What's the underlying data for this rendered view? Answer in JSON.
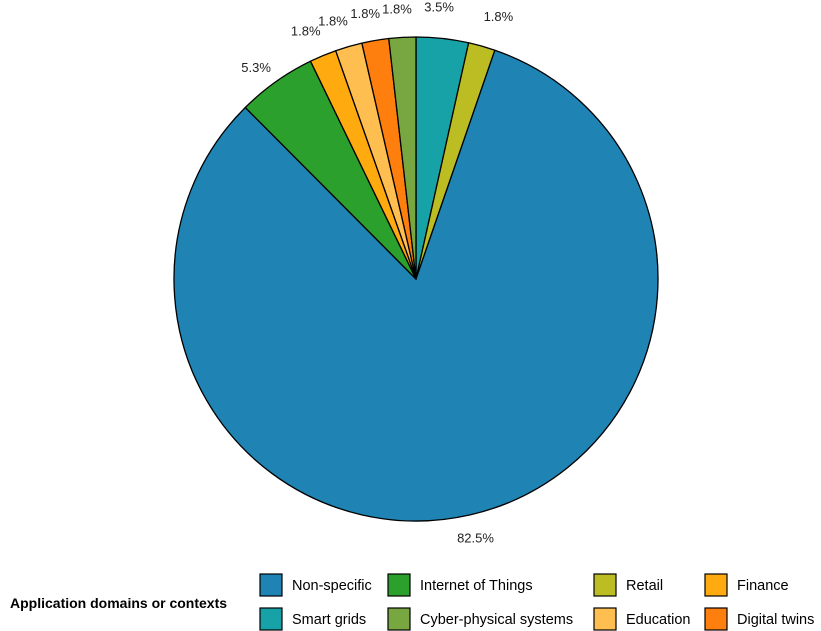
{
  "chart_data": {
    "type": "pie",
    "title": "",
    "legend_title": "Application domains or contexts",
    "legend_position": "bottom",
    "slices": [
      {
        "label": "Smart grids",
        "value": 3.5,
        "display": "3.5%",
        "color": "#17a2a8"
      },
      {
        "label": "Retail",
        "value": 1.8,
        "display": "1.8%",
        "color": "#bcbd22"
      },
      {
        "label": "Non-specific",
        "value": 82.5,
        "display": "82.5%",
        "color": "#1f83b4"
      },
      {
        "label": "Internet of Things",
        "value": 5.3,
        "display": "5.3%",
        "color": "#2ca02c"
      },
      {
        "label": "Finance",
        "value": 1.8,
        "display": "1.8%",
        "color": "#ffaa0e"
      },
      {
        "label": "Education",
        "value": 1.8,
        "display": "1.8%",
        "color": "#ffbf50"
      },
      {
        "label": "Digital twins",
        "value": 1.8,
        "display": "1.8%",
        "color": "#ff7f0e"
      },
      {
        "label": "Cyber-physical systems",
        "value": 1.8,
        "display": "1.8%",
        "color": "#78a641"
      }
    ],
    "legend_order": [
      "Non-specific",
      "Internet of Things",
      "Retail",
      "Finance",
      "Smart grids",
      "Cyber-physical systems",
      "Education",
      "Digital twins"
    ]
  }
}
